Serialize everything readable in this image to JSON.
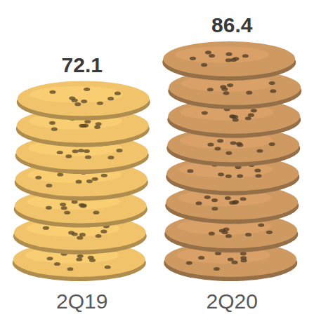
{
  "chart_data": {
    "type": "bar",
    "categories": [
      "2Q19",
      "2Q20"
    ],
    "values": [
      72.1,
      86.4
    ],
    "colors": [
      "#f1c46c",
      "#cf9a62"
    ],
    "data_labels": true,
    "tick_labels": "x",
    "grid": false
  }
}
